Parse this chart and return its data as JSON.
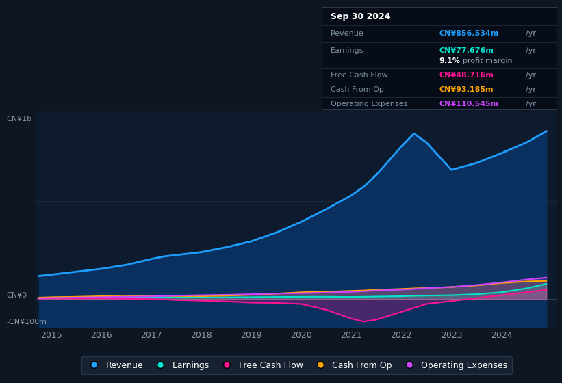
{
  "bg_color": "#0e1621",
  "plot_bg_color": "#0e1a2e",
  "title_box": {
    "date": "Sep 30 2024",
    "rows": [
      {
        "label": "Revenue",
        "value": "CN¥856.534m",
        "value_color": "#1e9fff"
      },
      {
        "label": "Earnings",
        "value": "CN¥77.676m",
        "value_color": "#00e5cc"
      },
      {
        "label": "",
        "value": "9.1% profit margin",
        "value_color": "#aaaaaa",
        "bold_part": "9.1%"
      },
      {
        "label": "Free Cash Flow",
        "value": "CN¥48.716m",
        "value_color": "#ff1493"
      },
      {
        "label": "Cash From Op",
        "value": "CN¥93.185m",
        "value_color": "#ffa500"
      },
      {
        "label": "Operating Expenses",
        "value": "CN¥110.545m",
        "value_color": "#cc44ff"
      }
    ]
  },
  "y_label_top": "CN¥1b",
  "y_label_zero": "CN¥0",
  "y_label_neg": "-CN¥100m",
  "x_ticks": [
    2015,
    2016,
    2017,
    2018,
    2019,
    2020,
    2021,
    2022,
    2023,
    2024
  ],
  "years": [
    2014.75,
    2015.0,
    2015.5,
    2016.0,
    2016.5,
    2017.0,
    2017.25,
    2017.5,
    2018.0,
    2018.5,
    2019.0,
    2019.5,
    2020.0,
    2020.5,
    2021.0,
    2021.25,
    2021.5,
    2022.0,
    2022.25,
    2022.5,
    2023.0,
    2023.5,
    2024.0,
    2024.5,
    2024.9
  ],
  "revenue": [
    118,
    125,
    140,
    155,
    175,
    205,
    218,
    225,
    240,
    265,
    295,
    340,
    395,
    460,
    530,
    575,
    635,
    780,
    845,
    800,
    660,
    695,
    745,
    800,
    857
  ],
  "earnings": [
    5,
    6,
    7,
    8,
    8,
    9,
    9,
    8,
    8,
    9,
    10,
    11,
    12,
    12,
    11,
    12,
    13,
    15,
    17,
    18,
    20,
    25,
    35,
    55,
    78
  ],
  "free_cash_flow": [
    3,
    4,
    4,
    5,
    2,
    0,
    -2,
    -5,
    -8,
    -12,
    -18,
    -20,
    -25,
    -55,
    -100,
    -115,
    -105,
    -65,
    -45,
    -25,
    -10,
    5,
    20,
    35,
    48
  ],
  "cash_from_op": [
    8,
    10,
    12,
    15,
    14,
    18,
    18,
    16,
    15,
    18,
    22,
    28,
    35,
    38,
    42,
    44,
    48,
    52,
    55,
    57,
    62,
    70,
    82,
    90,
    93
  ],
  "operating_expenses": [
    5,
    6,
    8,
    10,
    12,
    14,
    16,
    18,
    20,
    22,
    25,
    28,
    30,
    33,
    37,
    40,
    44,
    48,
    52,
    56,
    62,
    72,
    85,
    100,
    110
  ],
  "revenue_color": "#1e9fff",
  "earnings_color": "#00e5cc",
  "free_cash_flow_color": "#ff1493",
  "cash_from_op_color": "#ffa500",
  "operating_expenses_color": "#cc44ff",
  "revenue_fill_color": "#0a3060",
  "ylim_min": -145,
  "ylim_max": 960,
  "legend_items": [
    {
      "label": "Revenue",
      "color": "#1e9fff"
    },
    {
      "label": "Earnings",
      "color": "#00e5cc"
    },
    {
      "label": "Free Cash Flow",
      "color": "#ff1493"
    },
    {
      "label": "Cash From Op",
      "color": "#ffa500"
    },
    {
      "label": "Operating Expenses",
      "color": "#cc44ff"
    }
  ]
}
